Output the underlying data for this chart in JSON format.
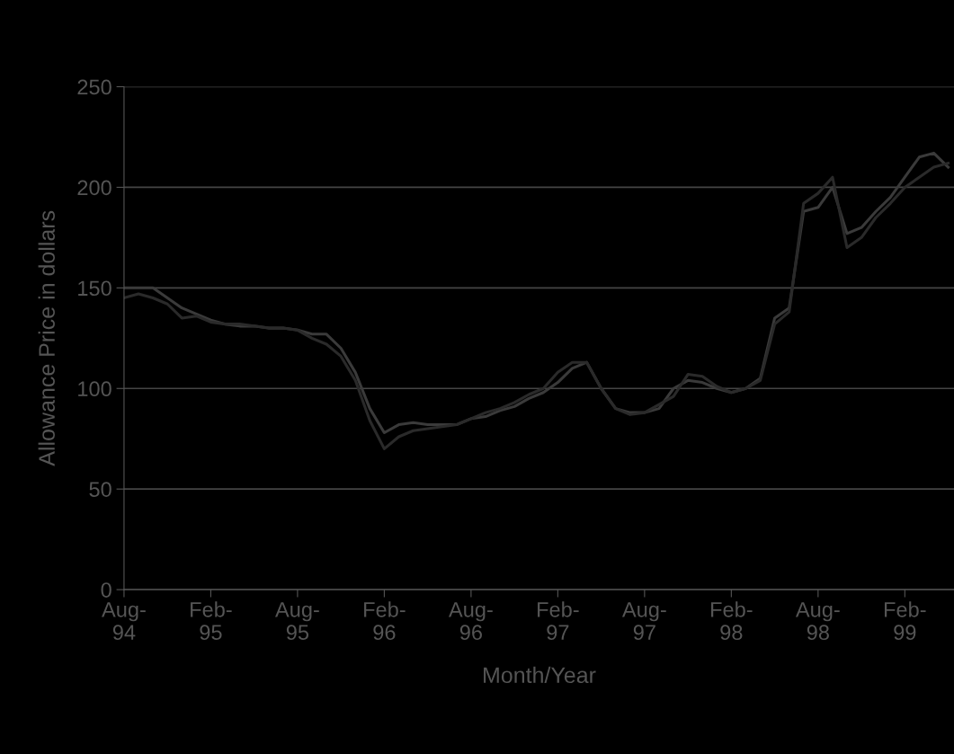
{
  "chart_data": {
    "type": "line",
    "xlabel": "Month/Year",
    "ylabel": "Allowance Price in dollars",
    "categories": [
      "Aug-\n94",
      null,
      null,
      null,
      null,
      null,
      "Feb-\n95",
      null,
      null,
      null,
      null,
      null,
      "Aug-\n95",
      null,
      null,
      null,
      null,
      null,
      "Feb-\n96",
      null,
      null,
      null,
      null,
      null,
      "Aug-\n96",
      null,
      null,
      null,
      null,
      null,
      "Feb-\n97",
      null,
      null,
      null,
      null,
      null,
      "Aug-\n97",
      null,
      null,
      null,
      null,
      null,
      "Feb-\n98",
      null,
      null,
      null,
      null,
      null,
      "Aug-\n98",
      null,
      null,
      null,
      null,
      null,
      "Feb-\n99",
      null,
      null,
      null
    ],
    "series": [
      {
        "color": "#3a3a3a",
        "values": [
          150,
          150,
          150,
          145,
          140,
          137,
          134,
          132,
          131,
          131,
          130,
          130,
          129,
          127,
          127,
          120,
          108,
          90,
          78,
          82,
          83,
          82,
          82,
          82,
          85,
          86,
          89,
          91,
          95,
          98,
          103,
          110,
          113,
          100,
          90,
          88,
          88,
          90,
          100,
          104,
          103,
          100,
          98,
          100,
          105,
          135,
          140,
          188,
          190,
          200,
          177,
          180,
          188,
          195,
          205,
          215,
          217,
          210
        ]
      },
      {
        "color": "#2a2a2a",
        "values": [
          145,
          147,
          145,
          142,
          135,
          136,
          133,
          132,
          132,
          131,
          130,
          130,
          129,
          125,
          122,
          116,
          104,
          84,
          70,
          76,
          79,
          80,
          81,
          82,
          85,
          88,
          90,
          93,
          97,
          100,
          108,
          113,
          113,
          100,
          90,
          87,
          88,
          92,
          96,
          107,
          106,
          101,
          98,
          100,
          104,
          132,
          138,
          192,
          197,
          205,
          170,
          175,
          185,
          192,
          200,
          205,
          210,
          212
        ]
      }
    ],
    "ylim": [
      0,
      250
    ],
    "yticks": [
      0,
      50,
      100,
      150,
      200,
      250
    ],
    "grid": "y"
  }
}
